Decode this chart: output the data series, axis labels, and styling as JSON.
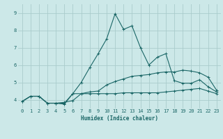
{
  "xlabel": "Humidex (Indice chaleur)",
  "ylabel": "",
  "bg_color": "#cce8e8",
  "grid_color": "#aacccc",
  "line_color": "#1a6666",
  "xlim": [
    -0.5,
    23.5
  ],
  "ylim": [
    3.5,
    9.5
  ],
  "xticks": [
    0,
    1,
    2,
    3,
    4,
    5,
    6,
    7,
    8,
    9,
    10,
    11,
    12,
    13,
    14,
    15,
    16,
    17,
    18,
    19,
    20,
    21,
    22,
    23
  ],
  "yticks": [
    4,
    5,
    6,
    7,
    8,
    9
  ],
  "line1_x": [
    0,
    1,
    2,
    3,
    4,
    5,
    6,
    7,
    8,
    9,
    10,
    11,
    12,
    13,
    14,
    15,
    16,
    17,
    18,
    19,
    20,
    21,
    22,
    23
  ],
  "line1_y": [
    3.9,
    4.2,
    4.2,
    3.8,
    3.8,
    3.8,
    4.35,
    4.35,
    4.35,
    4.35,
    4.35,
    4.35,
    4.4,
    4.4,
    4.4,
    4.4,
    4.4,
    4.45,
    4.5,
    4.55,
    4.6,
    4.65,
    4.5,
    4.35
  ],
  "line2_x": [
    0,
    1,
    2,
    3,
    4,
    5,
    6,
    7,
    8,
    9,
    10,
    11,
    12,
    13,
    14,
    15,
    16,
    17,
    18,
    19,
    20,
    21,
    22,
    23
  ],
  "line2_y": [
    3.9,
    4.2,
    4.2,
    3.8,
    3.8,
    3.85,
    3.95,
    4.35,
    4.45,
    4.5,
    4.85,
    5.05,
    5.2,
    5.35,
    5.4,
    5.45,
    5.55,
    5.6,
    5.6,
    5.7,
    5.65,
    5.55,
    5.3,
    4.55
  ],
  "line3_x": [
    0,
    1,
    2,
    3,
    4,
    5,
    6,
    7,
    8,
    9,
    10,
    11,
    12,
    13,
    14,
    15,
    16,
    17,
    18,
    19,
    20,
    21,
    22,
    23
  ],
  "line3_y": [
    3.9,
    4.2,
    4.2,
    3.8,
    3.8,
    3.75,
    4.35,
    5.0,
    5.85,
    6.65,
    7.5,
    8.95,
    8.05,
    8.25,
    7.0,
    6.0,
    6.45,
    6.65,
    5.1,
    4.95,
    4.95,
    5.15,
    4.75,
    4.45
  ],
  "marker": "+",
  "markersize": 3,
  "linewidth": 0.8
}
